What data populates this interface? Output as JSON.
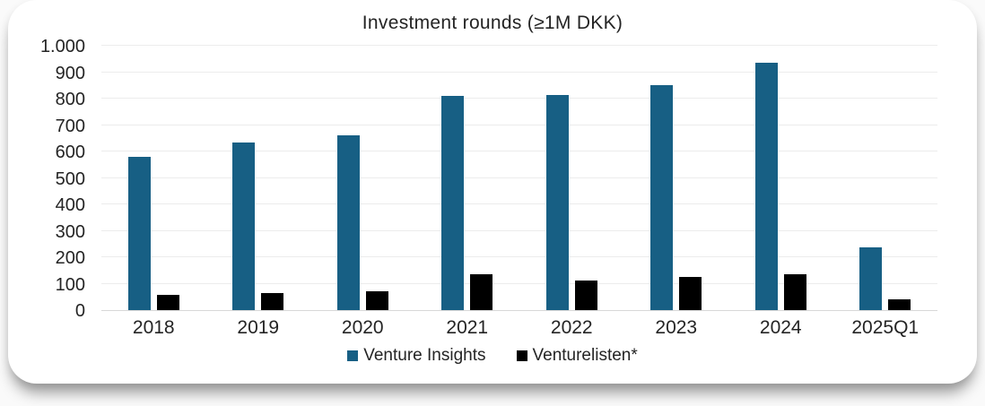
{
  "chart_data": {
    "type": "bar",
    "title": "Investment rounds (≥1M DKK)",
    "categories": [
      "2018",
      "2019",
      "2020",
      "2021",
      "2022",
      "2023",
      "2024",
      "2025Q1"
    ],
    "series": [
      {
        "name": "Venture Insights",
        "color": "#175f84",
        "values": [
          580,
          635,
          660,
          810,
          815,
          850,
          935,
          237
        ]
      },
      {
        "name": "Venturelisten*",
        "color": "#000000",
        "values": [
          57,
          66,
          70,
          137,
          113,
          124,
          136,
          40
        ]
      }
    ],
    "ylim": [
      0,
      1000
    ],
    "ytick_interval": 100,
    "ytick_labels": [
      "0",
      "100",
      "200",
      "300",
      "400",
      "500",
      "600",
      "700",
      "800",
      "900",
      "1.000"
    ],
    "grid": true,
    "legend_position": "bottom",
    "colors": {
      "grid": "#ececec",
      "axis": "#d8d8d8",
      "text": "#242424",
      "card_background": "#ffffff"
    }
  }
}
